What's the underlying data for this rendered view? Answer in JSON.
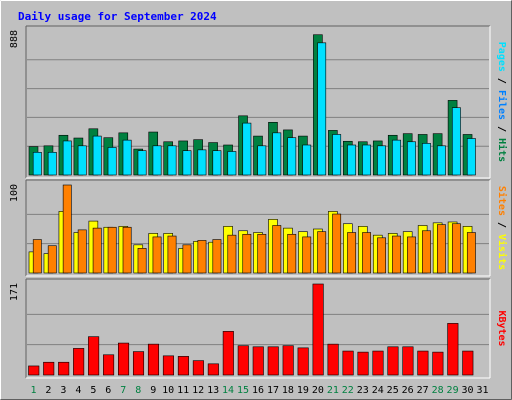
{
  "title": "Daily usage for September 2024",
  "colors": {
    "background": "#c0c0c0",
    "plot": "#c0c0c0",
    "grid": "#808080",
    "title": "#0000ff",
    "hits": "#008040",
    "files": "#0080ff",
    "pages": "#00e0ff",
    "visits": "#ffff00",
    "sites": "#ff8000",
    "kbytes": "#ff0000",
    "weekday_label": "#000080",
    "weekend_label": "#008040"
  },
  "chart_data": [
    {
      "type": "bar",
      "panel": "hits-files-pages",
      "ylabel_parts": [
        "Pages",
        "/",
        "Files",
        "/",
        "Hits"
      ],
      "max_label": "888",
      "ylim": [
        0,
        888
      ],
      "categories": [
        "1",
        "2",
        "3",
        "4",
        "5",
        "6",
        "7",
        "8",
        "9",
        "10",
        "11",
        "12",
        "13",
        "14",
        "15",
        "16",
        "17",
        "18",
        "19",
        "20",
        "21",
        "22",
        "23",
        "24",
        "25",
        "26",
        "27",
        "28",
        "29",
        "30",
        "31"
      ],
      "series": [
        {
          "name": "Hits",
          "values": [
            175,
            180,
            245,
            228,
            285,
            230,
            260,
            160,
            265,
            205,
            210,
            218,
            200,
            185,
            365,
            240,
            325,
            278,
            240,
            865,
            275,
            208,
            205,
            210,
            245,
            255,
            250,
            255,
            460,
            250,
            0
          ]
        },
        {
          "name": "Files",
          "values": [
            0,
            0,
            0,
            0,
            0,
            0,
            0,
            0,
            0,
            0,
            0,
            0,
            0,
            0,
            0,
            0,
            0,
            0,
            0,
            0,
            0,
            0,
            0,
            0,
            0,
            0,
            0,
            0,
            0,
            0,
            0
          ]
        },
        {
          "name": "Pages",
          "values": [
            140,
            140,
            210,
            180,
            240,
            170,
            215,
            150,
            180,
            180,
            150,
            155,
            150,
            145,
            320,
            180,
            260,
            230,
            185,
            815,
            250,
            185,
            185,
            180,
            215,
            205,
            195,
            180,
            415,
            225,
            0
          ]
        }
      ]
    },
    {
      "type": "bar",
      "panel": "visits-sites",
      "ylabel_parts": [
        "Sites",
        "/",
        "Visits"
      ],
      "max_label": "100",
      "ylim": [
        0,
        100
      ],
      "categories": [
        "1",
        "2",
        "3",
        "4",
        "5",
        "6",
        "7",
        "8",
        "9",
        "10",
        "11",
        "12",
        "13",
        "14",
        "15",
        "16",
        "17",
        "18",
        "19",
        "20",
        "21",
        "22",
        "23",
        "24",
        "25",
        "26",
        "27",
        "28",
        "29",
        "30",
        "31"
      ],
      "series": [
        {
          "name": "Visits",
          "values": [
            24,
            22,
            70,
            46,
            59,
            52,
            53,
            32,
            45,
            45,
            28,
            36,
            35,
            53,
            48,
            46,
            61,
            51,
            47,
            50,
            70,
            56,
            53,
            43,
            45,
            47,
            54,
            57,
            58,
            53,
            0
          ]
        },
        {
          "name": "Sites",
          "values": [
            38,
            31,
            100,
            49,
            51,
            52,
            52,
            28,
            41,
            42,
            32,
            37,
            38,
            43,
            44,
            44,
            54,
            44,
            41,
            47,
            67,
            46,
            46,
            40,
            42,
            41,
            48,
            55,
            56,
            46,
            0
          ]
        }
      ]
    },
    {
      "type": "bar",
      "panel": "kbytes",
      "ylabel_parts": [
        "KBytes"
      ],
      "max_label": "171",
      "ylim": [
        0,
        171
      ],
      "categories": [
        "1",
        "2",
        "3",
        "4",
        "5",
        "6",
        "7",
        "8",
        "9",
        "10",
        "11",
        "12",
        "13",
        "14",
        "15",
        "16",
        "17",
        "18",
        "19",
        "20",
        "21",
        "22",
        "23",
        "24",
        "25",
        "26",
        "27",
        "28",
        "29",
        "30",
        "31"
      ],
      "series": [
        {
          "name": "KBytes",
          "values": [
            17,
            24,
            24,
            50,
            72,
            38,
            60,
            44,
            58,
            36,
            35,
            27,
            21,
            82,
            55,
            53,
            53,
            55,
            51,
            171,
            58,
            45,
            43,
            45,
            53,
            53,
            45,
            43,
            97,
            45,
            0
          ]
        }
      ]
    }
  ],
  "x_axis": {
    "labels": [
      "1",
      "2",
      "3",
      "4",
      "5",
      "6",
      "7",
      "8",
      "9",
      "10",
      "11",
      "12",
      "13",
      "14",
      "15",
      "16",
      "17",
      "18",
      "19",
      "20",
      "21",
      "22",
      "23",
      "24",
      "25",
      "26",
      "27",
      "28",
      "29",
      "30",
      "31"
    ],
    "weekend_days": [
      1,
      7,
      8,
      14,
      15,
      21,
      22,
      28,
      29
    ]
  }
}
